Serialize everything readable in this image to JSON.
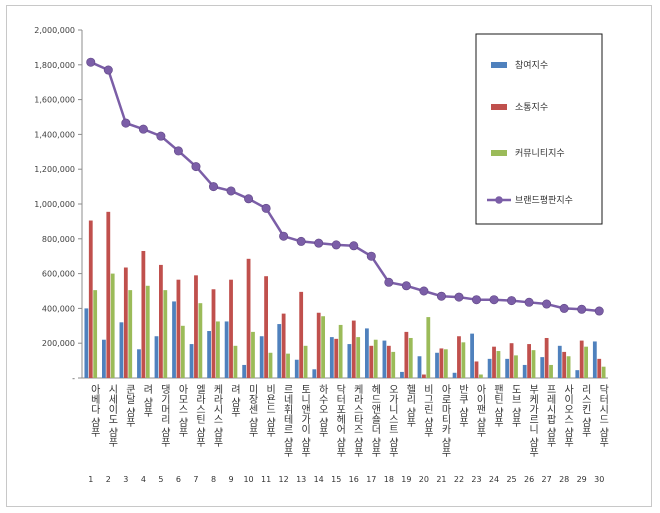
{
  "chart_data": {
    "type": "bar",
    "title": "",
    "xlabel": "",
    "ylabel": "",
    "ylim": [
      0,
      2000000
    ],
    "yticks": [
      "-",
      "200,000",
      "400,000",
      "600,000",
      "800,000",
      "1,000,000",
      "1,200,000",
      "1,400,000",
      "1,600,000",
      "1,800,000",
      "2,000,000"
    ],
    "numbers": [
      "1",
      "2",
      "3",
      "4",
      "5",
      "6",
      "7",
      "8",
      "9",
      "10",
      "11",
      "12",
      "13",
      "14",
      "15",
      "16",
      "17",
      "18",
      "19",
      "20",
      "21",
      "22",
      "23",
      "24",
      "25",
      "26",
      "27",
      "28",
      "29",
      "30"
    ],
    "categories": [
      "아베다 샴푸",
      "시세이도 샴푸",
      "쿤달 샴푸",
      "려 샴푸",
      "댕기머리 샴푸",
      "아모스 샴푸",
      "엘라스틴 샴푸",
      "케라시스 샴푸",
      "려 샴푸",
      "미장센 샴푸",
      "비욘드 샴푸",
      "르네휘테르 샴푸",
      "토니앤가이 샴푸",
      "하수오 샴푸",
      "닥터포헤어 샴푸",
      "케라스타즈 샴푸",
      "헤드앤숄더 샴푸",
      "오가니스트 샴푸",
      "헬리 샴푸",
      "비그린 샴푸",
      "아로마티카 샴푸",
      "반쿠 샴푸",
      "아이팬 샴푸",
      "팬틴 샴푸",
      "도브 샴푸",
      "부케가르니 샴푸",
      "프레시팝 샴푸",
      "사이오스 샴푸",
      "리스킨 샴푸",
      "닥터시드 샴푸"
    ],
    "grid": false,
    "legend_position": "top-right",
    "series": [
      {
        "name": "참여지수",
        "kind": "bar",
        "color": "#4f81bd",
        "values": [
          400000,
          220000,
          320000,
          165000,
          240000,
          440000,
          195000,
          270000,
          325000,
          75000,
          240000,
          310000,
          105000,
          50000,
          235000,
          195000,
          285000,
          215000,
          35000,
          125000,
          145000,
          30000,
          255000,
          110000,
          110000,
          75000,
          120000,
          185000,
          45000,
          210000
        ]
      },
      {
        "name": "소통지수",
        "kind": "bar",
        "color": "#c0504d",
        "values": [
          905000,
          955000,
          635000,
          730000,
          650000,
          565000,
          590000,
          510000,
          565000,
          685000,
          585000,
          370000,
          495000,
          375000,
          225000,
          330000,
          185000,
          185000,
          265000,
          20000,
          170000,
          240000,
          95000,
          180000,
          200000,
          195000,
          230000,
          150000,
          215000,
          110000
        ]
      },
      {
        "name": "커뮤니티지수",
        "kind": "bar",
        "color": "#9bbb59",
        "values": [
          505000,
          600000,
          505000,
          530000,
          505000,
          300000,
          430000,
          325000,
          185000,
          265000,
          145000,
          140000,
          185000,
          355000,
          305000,
          235000,
          220000,
          150000,
          230000,
          350000,
          165000,
          205000,
          20000,
          155000,
          130000,
          160000,
          75000,
          125000,
          180000,
          65000
        ]
      },
      {
        "name": "브랜드평판지수",
        "kind": "line",
        "color": "#7b5ea7",
        "values": [
          1815000,
          1770000,
          1465000,
          1430000,
          1390000,
          1305000,
          1215000,
          1100000,
          1075000,
          1030000,
          975000,
          815000,
          785000,
          775000,
          765000,
          760000,
          700000,
          550000,
          530000,
          500000,
          470000,
          465000,
          450000,
          450000,
          445000,
          435000,
          425000,
          400000,
          395000,
          385000
        ]
      }
    ]
  }
}
